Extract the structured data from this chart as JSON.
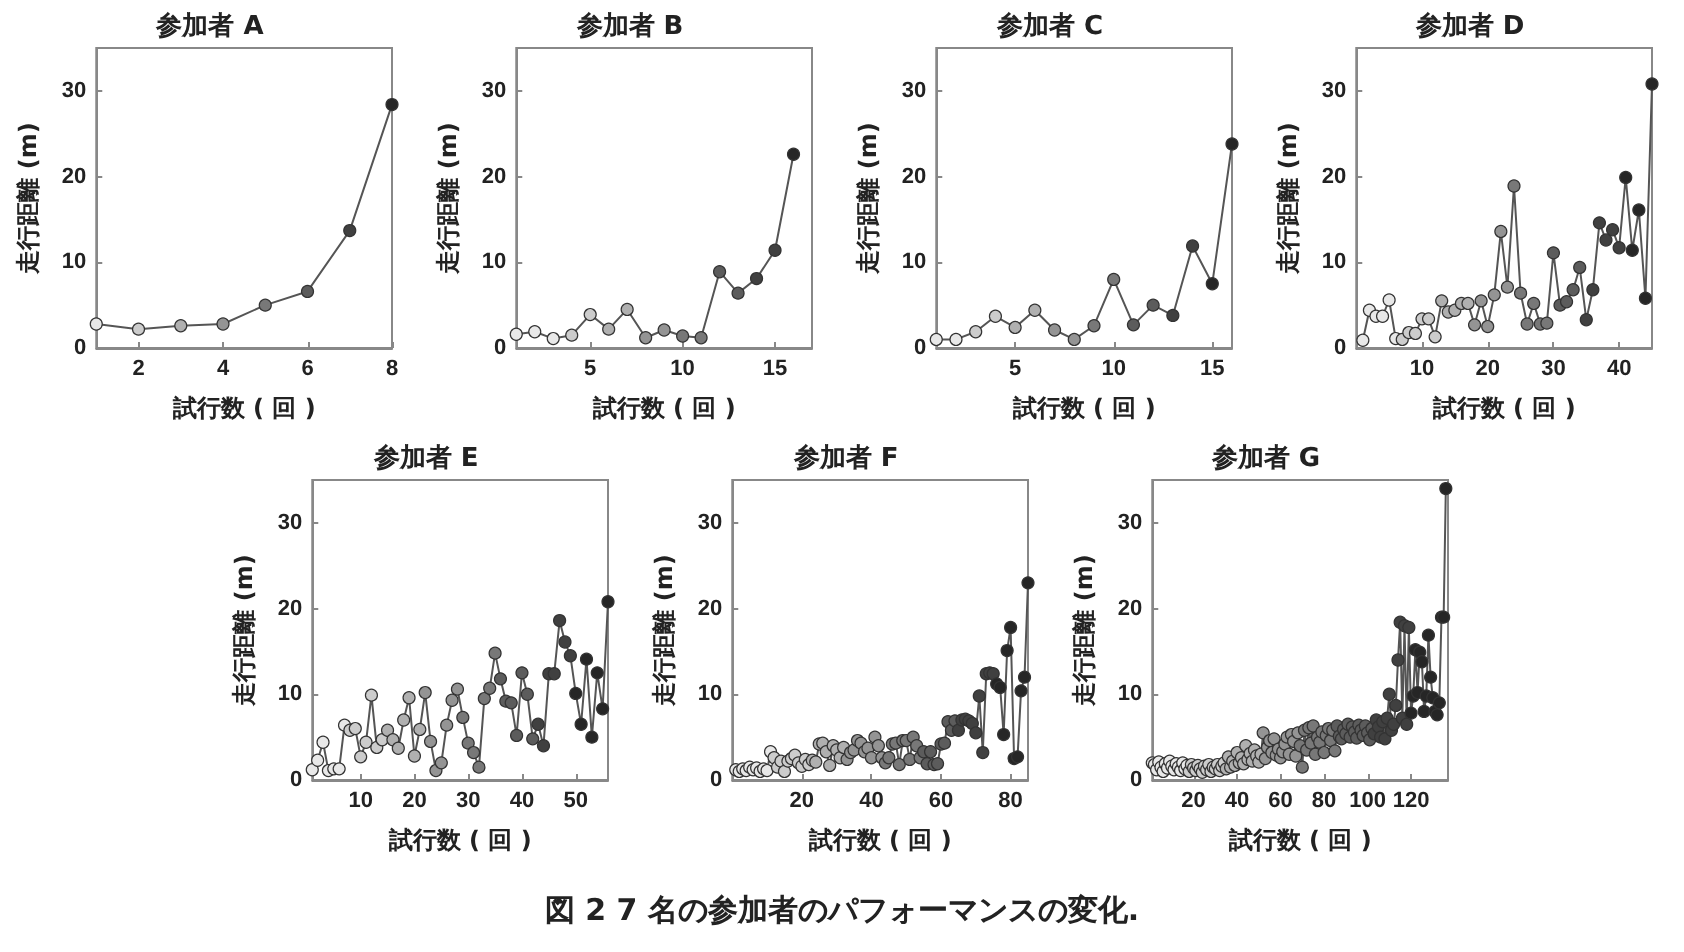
{
  "chart_data": [
    {
      "type": "line",
      "title": "参加者 A",
      "xlabel": "試行数 ( 回 )",
      "ylabel": "走行距離 (m)",
      "xlim": [
        1,
        8
      ],
      "xticks": [
        2,
        4,
        6,
        8
      ],
      "ylim": [
        0,
        35
      ],
      "yticks": [
        0,
        10,
        20,
        30
      ],
      "marker": "circle",
      "line_style": "solid",
      "x": [
        1,
        2,
        3,
        4,
        5,
        6,
        7,
        8
      ],
      "series": [
        {
          "color": "#555555",
          "values": [
            2.8,
            2.2,
            2.6,
            2.8,
            5.0,
            6.6,
            13.7,
            28.4
          ],
          "colors": [
            "#e8e8e8",
            "#cccccc",
            "#b0b0b0",
            "#949494",
            "#787878",
            "#5c5c5c",
            "#404040",
            "#262626"
          ]
        }
      ]
    },
    {
      "type": "line",
      "title": "参加者 B",
      "xlabel": "試行数 ( 回 )",
      "ylabel": "走行距離 (m)",
      "xlim": [
        1,
        17
      ],
      "xticks": [
        5,
        10,
        15
      ],
      "ylim": [
        0,
        35
      ],
      "yticks": [
        0,
        10,
        20,
        30
      ],
      "marker": "circle",
      "line_style": "solid",
      "x": [
        1,
        2,
        3,
        4,
        5,
        6,
        7,
        8,
        9,
        10,
        11,
        12,
        13,
        14,
        15,
        16
      ],
      "series": [
        {
          "color": "#555555",
          "values": [
            1.6,
            1.9,
            1.1,
            1.5,
            3.9,
            2.2,
            4.5,
            1.2,
            2.1,
            1.4,
            1.2,
            8.9,
            6.4,
            8.1,
            11.4,
            22.6
          ],
          "colors": [
            "#e8e8e8",
            "#e8e8e8",
            "#e8e8e8",
            "#cccccc",
            "#cccccc",
            "#b0b0b0",
            "#b0b0b0",
            "#949494",
            "#949494",
            "#787878",
            "#787878",
            "#5c5c5c",
            "#5c5c5c",
            "#404040",
            "#404040",
            "#262626"
          ]
        }
      ]
    },
    {
      "type": "line",
      "title": "参加者 C",
      "xlabel": "試行数 ( 回 )",
      "ylabel": "走行距離 (m)",
      "xlim": [
        1,
        16
      ],
      "xticks": [
        5,
        10,
        15
      ],
      "ylim": [
        0,
        35
      ],
      "yticks": [
        0,
        10,
        20,
        30
      ],
      "marker": "circle",
      "line_style": "solid",
      "x": [
        1,
        2,
        3,
        4,
        5,
        6,
        7,
        8,
        9,
        10,
        11,
        12,
        13,
        14,
        15,
        16
      ],
      "series": [
        {
          "color": "#555555",
          "values": [
            1.0,
            1.0,
            1.9,
            3.7,
            2.4,
            4.4,
            2.1,
            1.0,
            2.6,
            8.0,
            2.7,
            5.0,
            3.8,
            11.9,
            7.5,
            23.8
          ],
          "colors": [
            "#e8e8e8",
            "#e8e8e8",
            "#cccccc",
            "#cccccc",
            "#b0b0b0",
            "#b0b0b0",
            "#949494",
            "#949494",
            "#787878",
            "#787878",
            "#5c5c5c",
            "#5c5c5c",
            "#404040",
            "#404040",
            "#262626",
            "#262626"
          ]
        }
      ]
    },
    {
      "type": "line",
      "title": "参加者 D",
      "xlabel": "試行数 ( 回 )",
      "ylabel": "走行距離 (m)",
      "xlim": [
        0,
        45
      ],
      "xticks": [
        10,
        20,
        30,
        40
      ],
      "ylim": [
        0,
        35
      ],
      "yticks": [
        0,
        10,
        20,
        30
      ],
      "marker": "circle",
      "line_style": "solid",
      "x": [
        1,
        2,
        3,
        4,
        5,
        6,
        7,
        8,
        9,
        10,
        11,
        12,
        13,
        14,
        15,
        16,
        17,
        18,
        19,
        20,
        21,
        22,
        23,
        24,
        25,
        26,
        27,
        28,
        29,
        30,
        31,
        32,
        33,
        34,
        35,
        36,
        37,
        38,
        39,
        40,
        41,
        42,
        43,
        44,
        45
      ],
      "series": [
        {
          "color": "#555555",
          "values": [
            0.9,
            4.4,
            3.7,
            3.7,
            5.6,
            1.1,
            1.0,
            1.8,
            1.7,
            3.4,
            3.4,
            1.3,
            5.5,
            4.2,
            4.4,
            5.2,
            5.2,
            2.7,
            5.5,
            2.5,
            6.2,
            13.6,
            7.1,
            18.9,
            6.4,
            2.8,
            5.2,
            2.8,
            2.9,
            11.1,
            5.0,
            5.4,
            6.8,
            9.4,
            3.3,
            6.8,
            14.6,
            12.6,
            13.8,
            11.7,
            19.9,
            11.4,
            16.1,
            5.8,
            30.8
          ],
          "colors": [
            "#e8e8e8",
            "#e8e8e8",
            "#e8e8e8",
            "#e8e8e8",
            "#e8e8e8",
            "#e8e8e8",
            "#cccccc",
            "#cccccc",
            "#cccccc",
            "#cccccc",
            "#cccccc",
            "#cccccc",
            "#b0b0b0",
            "#b0b0b0",
            "#b0b0b0",
            "#b0b0b0",
            "#b0b0b0",
            "#949494",
            "#949494",
            "#949494",
            "#949494",
            "#949494",
            "#949494",
            "#787878",
            "#787878",
            "#787878",
            "#787878",
            "#787878",
            "#787878",
            "#5c5c5c",
            "#5c5c5c",
            "#5c5c5c",
            "#5c5c5c",
            "#5c5c5c",
            "#404040",
            "#404040",
            "#404040",
            "#404040",
            "#404040",
            "#404040",
            "#262626",
            "#262626",
            "#262626",
            "#262626",
            "#262626"
          ]
        }
      ]
    },
    {
      "type": "line",
      "title": "参加者 E",
      "xlabel": "試行数 ( 回 )",
      "ylabel": "走行距離 (m)",
      "xlim": [
        1,
        56
      ],
      "xticks": [
        10,
        20,
        30,
        40,
        50
      ],
      "ylim": [
        0,
        35
      ],
      "yticks": [
        0,
        10,
        20,
        30
      ],
      "marker": "circle",
      "line_style": "solid",
      "x": [
        1,
        2,
        3,
        4,
        5,
        6,
        7,
        8,
        9,
        10,
        11,
        12,
        13,
        14,
        15,
        16,
        17,
        18,
        19,
        20,
        21,
        22,
        23,
        24,
        25,
        26,
        27,
        28,
        29,
        30,
        31,
        32,
        33,
        34,
        35,
        36,
        37,
        38,
        39,
        40,
        41,
        42,
        43,
        44,
        45,
        46,
        47,
        48,
        49,
        50,
        51,
        52,
        53,
        54,
        55,
        56
      ],
      "series": [
        {
          "color": "#555555",
          "values": [
            1.2,
            2.3,
            4.4,
            1.1,
            1.3,
            1.3,
            6.4,
            5.8,
            6.0,
            2.7,
            4.4,
            9.9,
            3.8,
            4.7,
            5.8,
            4.7,
            3.7,
            7.0,
            9.6,
            2.8,
            5.9,
            10.2,
            4.5,
            1.1,
            2.0,
            6.4,
            9.3,
            10.6,
            7.3,
            4.3,
            3.2,
            1.5,
            9.5,
            10.7,
            14.8,
            11.8,
            9.2,
            9.0,
            5.2,
            12.5,
            10.0,
            4.8,
            6.5,
            4.0,
            12.4,
            12.4,
            18.6,
            16.1,
            14.5,
            10.1,
            6.5,
            14.1,
            5.0,
            12.5,
            8.3,
            20.8
          ],
          "colors": [
            "#e8e8e8",
            "#e8e8e8",
            "#e8e8e8",
            "#e8e8e8",
            "#e8e8e8",
            "#e8e8e8",
            "#e8e8e8",
            "#cccccc",
            "#cccccc",
            "#cccccc",
            "#cccccc",
            "#cccccc",
            "#cccccc",
            "#cccccc",
            "#b0b0b0",
            "#b0b0b0",
            "#b0b0b0",
            "#b0b0b0",
            "#b0b0b0",
            "#b0b0b0",
            "#b0b0b0",
            "#949494",
            "#949494",
            "#949494",
            "#949494",
            "#949494",
            "#949494",
            "#949494",
            "#787878",
            "#787878",
            "#787878",
            "#787878",
            "#787878",
            "#787878",
            "#787878",
            "#5c5c5c",
            "#5c5c5c",
            "#5c5c5c",
            "#5c5c5c",
            "#5c5c5c",
            "#5c5c5c",
            "#5c5c5c",
            "#404040",
            "#404040",
            "#404040",
            "#404040",
            "#404040",
            "#404040",
            "#404040",
            "#262626",
            "#262626",
            "#262626",
            "#262626",
            "#262626",
            "#262626",
            "#262626"
          ]
        }
      ]
    },
    {
      "type": "line",
      "title": "参加者 F",
      "xlabel": "試行数 ( 回 )",
      "ylabel": "走行距離 (m)",
      "xlim": [
        0,
        85
      ],
      "xticks": [
        20,
        40,
        60,
        80
      ],
      "ylim": [
        0,
        35
      ],
      "yticks": [
        0,
        10,
        20,
        30
      ],
      "marker": "circle",
      "line_style": "solid",
      "x": [
        1,
        2,
        3,
        4,
        5,
        6,
        7,
        8,
        9,
        10,
        11,
        12,
        13,
        14,
        15,
        16,
        17,
        18,
        19,
        20,
        21,
        22,
        23,
        24,
        25,
        26,
        27,
        28,
        29,
        30,
        31,
        32,
        33,
        34,
        35,
        36,
        37,
        38,
        39,
        40,
        41,
        42,
        43,
        44,
        45,
        46,
        47,
        48,
        49,
        50,
        51,
        52,
        53,
        54,
        55,
        56,
        57,
        58,
        59,
        60,
        61,
        62,
        63,
        64,
        65,
        66,
        67,
        68,
        69,
        70,
        71,
        72,
        73,
        74,
        75,
        76,
        77,
        78,
        79,
        80,
        81,
        82,
        83,
        84,
        85
      ],
      "series": [
        {
          "color": "#555555",
          "values": [
            1.2,
            1.0,
            1.3,
            1.1,
            1.5,
            1.2,
            1.4,
            1.0,
            1.3,
            1.1,
            3.3,
            2.6,
            1.5,
            2.2,
            1.0,
            2.2,
            2.5,
            2.9,
            2.0,
            1.6,
            2.4,
            1.8,
            2.3,
            2.1,
            4.2,
            4.3,
            3.3,
            1.7,
            4.0,
            3.5,
            2.6,
            3.8,
            2.4,
            3.2,
            3.5,
            4.6,
            4.3,
            3.3,
            3.7,
            2.6,
            5.0,
            4.0,
            2.6,
            2.0,
            2.6,
            4.2,
            4.3,
            1.8,
            4.6,
            4.6,
            2.4,
            5.0,
            4.0,
            2.6,
            3.3,
            1.9,
            3.3,
            1.8,
            1.9,
            4.2,
            4.3,
            6.8,
            5.8,
            6.9,
            5.8,
            7.0,
            7.1,
            6.9,
            6.6,
            5.5,
            9.8,
            3.2,
            12.4,
            12.5,
            12.4,
            11.2,
            10.8,
            5.3,
            15.1,
            17.8,
            2.5,
            2.7,
            10.4,
            12.0,
            23.0
          ],
          "colors": [
            "#e8e8e8",
            "#e8e8e8",
            "#e8e8e8",
            "#e8e8e8",
            "#e8e8e8",
            "#e8e8e8",
            "#e8e8e8",
            "#e8e8e8",
            "#e8e8e8",
            "#e8e8e8",
            "#e8e8e8",
            "#cccccc",
            "#cccccc",
            "#cccccc",
            "#cccccc",
            "#cccccc",
            "#cccccc",
            "#cccccc",
            "#cccccc",
            "#cccccc",
            "#cccccc",
            "#cccccc",
            "#b0b0b0",
            "#b0b0b0",
            "#b0b0b0",
            "#b0b0b0",
            "#b0b0b0",
            "#b0b0b0",
            "#b0b0b0",
            "#b0b0b0",
            "#b0b0b0",
            "#b0b0b0",
            "#949494",
            "#949494",
            "#949494",
            "#949494",
            "#949494",
            "#949494",
            "#949494",
            "#949494",
            "#949494",
            "#949494",
            "#949494",
            "#787878",
            "#787878",
            "#787878",
            "#787878",
            "#787878",
            "#787878",
            "#787878",
            "#787878",
            "#787878",
            "#787878",
            "#787878",
            "#5c5c5c",
            "#5c5c5c",
            "#5c5c5c",
            "#5c5c5c",
            "#5c5c5c",
            "#5c5c5c",
            "#5c5c5c",
            "#5c5c5c",
            "#5c5c5c",
            "#5c5c5c",
            "#404040",
            "#404040",
            "#404040",
            "#404040",
            "#404040",
            "#404040",
            "#404040",
            "#404040",
            "#404040",
            "#404040",
            "#404040",
            "#262626",
            "#262626",
            "#262626",
            "#262626",
            "#262626",
            "#262626",
            "#262626",
            "#262626",
            "#262626",
            "#262626"
          ]
        }
      ]
    },
    {
      "type": "line",
      "title": "参加者 G",
      "xlabel": "試行数 ( 回 )",
      "ylabel": "走行距離 (m)",
      "xlim": [
        1,
        137
      ],
      "xticks": [
        20,
        40,
        60,
        80,
        100,
        120
      ],
      "ylim": [
        0,
        35
      ],
      "yticks": [
        0,
        10,
        20,
        30
      ],
      "marker": "circle",
      "line_style": "solid",
      "annotations": [
        "図 2 7 名の参加者のパフォーマンスの変化."
      ],
      "x": [
        1,
        2,
        3,
        4,
        5,
        6,
        7,
        8,
        9,
        10,
        11,
        12,
        13,
        14,
        15,
        16,
        17,
        18,
        19,
        20,
        21,
        22,
        23,
        24,
        25,
        26,
        27,
        28,
        29,
        30,
        31,
        32,
        33,
        34,
        35,
        36,
        37,
        38,
        39,
        40,
        41,
        42,
        43,
        44,
        45,
        46,
        47,
        48,
        49,
        50,
        51,
        52,
        53,
        54,
        55,
        56,
        57,
        58,
        59,
        60,
        61,
        62,
        63,
        64,
        65,
        66,
        67,
        68,
        69,
        70,
        71,
        72,
        73,
        74,
        75,
        76,
        77,
        78,
        79,
        80,
        81,
        82,
        83,
        84,
        85,
        86,
        87,
        88,
        89,
        90,
        91,
        92,
        93,
        94,
        95,
        96,
        97,
        98,
        99,
        100,
        101,
        102,
        103,
        104,
        105,
        106,
        107,
        108,
        109,
        110,
        111,
        112,
        113,
        114,
        115,
        116,
        117,
        118,
        119,
        120,
        121,
        122,
        123,
        124,
        125,
        126,
        127,
        128,
        129,
        130,
        131,
        132,
        133,
        134,
        135,
        136
      ],
      "series": [
        {
          "color": "#555555",
          "values": [
            2.0,
            1.8,
            1.2,
            2.1,
            1.5,
            1.0,
            1.9,
            1.4,
            2.2,
            1.6,
            1.2,
            1.9,
            1.5,
            1.1,
            2.0,
            1.3,
            1.7,
            1.0,
            1.8,
            1.4,
            1.1,
            1.7,
            1.3,
            0.9,
            1.6,
            1.2,
            1.8,
            1.0,
            1.5,
            1.3,
            1.8,
            1.1,
            1.6,
            2.0,
            1.3,
            2.7,
            1.5,
            2.2,
            1.7,
            3.2,
            2.0,
            2.6,
            1.9,
            4.0,
            2.4,
            3.1,
            2.2,
            3.5,
            2.8,
            2.1,
            3.0,
            5.5,
            2.5,
            3.8,
            4.6,
            3.2,
            4.8,
            2.9,
            3.6,
            2.6,
            3.3,
            4.2,
            5.0,
            3.0,
            5.3,
            4.5,
            2.8,
            5.5,
            4.0,
            1.5,
            5.8,
            3.5,
            6.1,
            4.3,
            6.3,
            3.0,
            5.0,
            4.4,
            5.6,
            3.2,
            5.2,
            6.0,
            4.6,
            5.8,
            3.4,
            6.3,
            5.1,
            4.8,
            5.9,
            5.4,
            6.5,
            5.0,
            6.2,
            5.6,
            4.9,
            6.4,
            5.8,
            5.2,
            6.3,
            5.5,
            4.7,
            6.0,
            5.4,
            7.0,
            6.2,
            5.0,
            6.8,
            4.8,
            7.2,
            10.0,
            5.8,
            6.5,
            8.7,
            14.0,
            18.4,
            7.2,
            18.0,
            6.5,
            17.8,
            7.8,
            9.8,
            15.2,
            10.2,
            14.9,
            13.8,
            8.0,
            9.8,
            16.9,
            12.0,
            9.6,
            8.0,
            7.6,
            9.0,
            19.0,
            19.0,
            34.0
          ],
          "colors": [
            "#e8e8e8",
            "#e8e8e8",
            "#e8e8e8",
            "#e8e8e8",
            "#e8e8e8",
            "#e8e8e8",
            "#e8e8e8",
            "#e8e8e8",
            "#e8e8e8",
            "#e8e8e8",
            "#e8e8e8",
            "#e8e8e8",
            "#e8e8e8",
            "#e8e8e8",
            "#e8e8e8",
            "#e8e8e8",
            "#e8e8e8",
            "#cccccc",
            "#cccccc",
            "#cccccc",
            "#cccccc",
            "#cccccc",
            "#cccccc",
            "#cccccc",
            "#cccccc",
            "#cccccc",
            "#cccccc",
            "#cccccc",
            "#cccccc",
            "#cccccc",
            "#cccccc",
            "#cccccc",
            "#cccccc",
            "#cccccc",
            "#b0b0b0",
            "#b0b0b0",
            "#b0b0b0",
            "#b0b0b0",
            "#b0b0b0",
            "#b0b0b0",
            "#b0b0b0",
            "#b0b0b0",
            "#b0b0b0",
            "#b0b0b0",
            "#b0b0b0",
            "#b0b0b0",
            "#b0b0b0",
            "#b0b0b0",
            "#b0b0b0",
            "#b0b0b0",
            "#b0b0b0",
            "#949494",
            "#949494",
            "#949494",
            "#949494",
            "#949494",
            "#949494",
            "#949494",
            "#949494",
            "#949494",
            "#949494",
            "#949494",
            "#949494",
            "#949494",
            "#949494",
            "#949494",
            "#949494",
            "#949494",
            "#787878",
            "#787878",
            "#787878",
            "#787878",
            "#787878",
            "#787878",
            "#787878",
            "#787878",
            "#787878",
            "#787878",
            "#787878",
            "#787878",
            "#787878",
            "#787878",
            "#787878",
            "#787878",
            "#787878",
            "#5c5c5c",
            "#5c5c5c",
            "#5c5c5c",
            "#5c5c5c",
            "#5c5c5c",
            "#5c5c5c",
            "#5c5c5c",
            "#5c5c5c",
            "#5c5c5c",
            "#5c5c5c",
            "#5c5c5c",
            "#5c5c5c",
            "#5c5c5c",
            "#5c5c5c",
            "#5c5c5c",
            "#5c5c5c",
            "#5c5c5c",
            "#404040",
            "#404040",
            "#404040",
            "#404040",
            "#404040",
            "#404040",
            "#404040",
            "#404040",
            "#404040",
            "#404040",
            "#404040",
            "#404040",
            "#404040",
            "#404040",
            "#404040",
            "#404040",
            "#404040",
            "#262626",
            "#262626",
            "#262626",
            "#262626",
            "#262626",
            "#262626",
            "#262626",
            "#262626",
            "#262626",
            "#262626",
            "#262626",
            "#262626",
            "#262626",
            "#262626",
            "#262626",
            "#262626",
            "#262626"
          ]
        }
      ]
    }
  ]
}
